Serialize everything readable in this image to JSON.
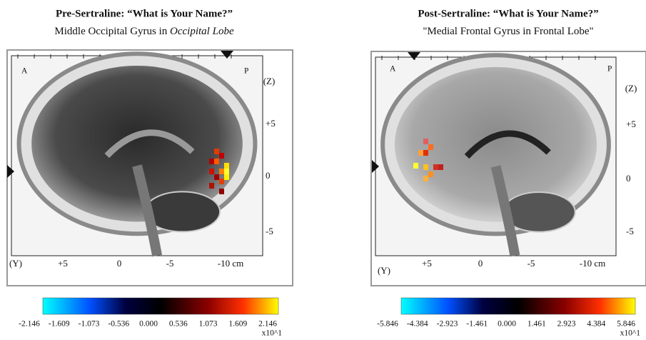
{
  "panels": [
    {
      "title": "Pre-Sertraline: “What is Your Name?”",
      "subtitle": "Middle Occipital Gyrus in ",
      "subtitle_italic": "Occipital Lobe",
      "corner_left": "A",
      "corner_right": "P",
      "z_axis": "(Z)",
      "y_axis": "(Y)",
      "z_ticks": [
        "+5",
        "0",
        "-5"
      ],
      "y_ticks": [
        "+5",
        "0",
        "-5",
        "-10 cm"
      ],
      "scale_ticks": [
        "-2.146",
        "-1.609",
        "-1.073",
        "-0.536",
        "0.000",
        "0.536",
        "1.073",
        "1.609",
        "2.146"
      ],
      "scale_multiplier": "x10^1"
    },
    {
      "title": "Post-Sertraline: “What is Your Name?”",
      "subtitle": "\"Medial Frontal Gyrus in Frontal Lobe\"",
      "subtitle_italic": "",
      "corner_left": "A",
      "corner_right": "P",
      "z_axis": "(Z)",
      "y_axis": "(Y)",
      "z_ticks": [
        "+5",
        "0",
        "-5"
      ],
      "y_ticks": [
        "+5",
        "0",
        "-5",
        "-10 cm"
      ],
      "scale_ticks": [
        "-5.846",
        "-4.384",
        "-2.923",
        "-1.461",
        "0.000",
        "1.461",
        "2.923",
        "4.384",
        "5.846"
      ],
      "scale_multiplier": "x10^1"
    }
  ]
}
